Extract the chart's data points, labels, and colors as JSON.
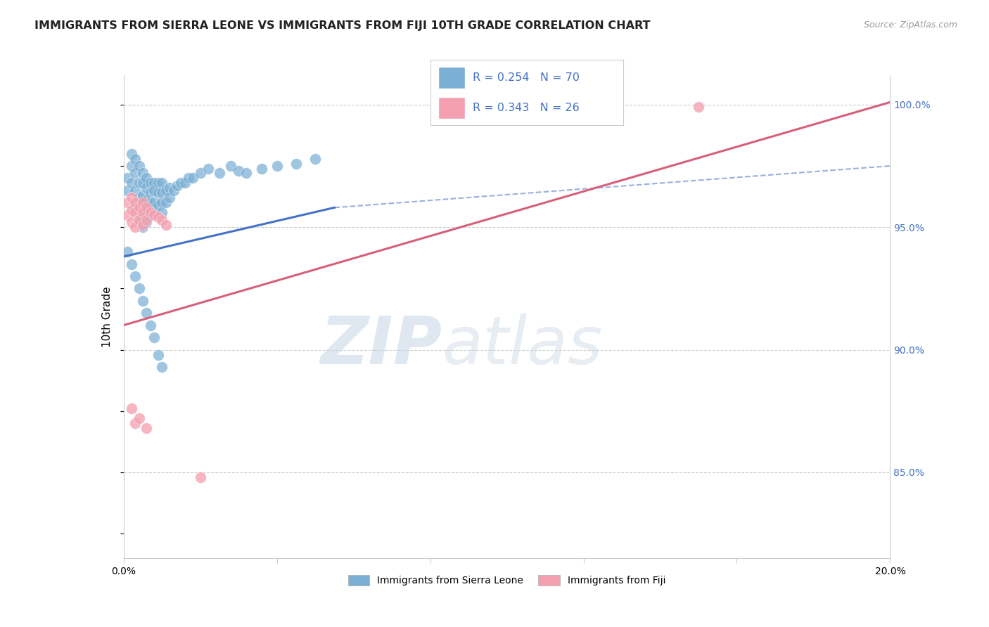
{
  "title": "IMMIGRANTS FROM SIERRA LEONE VS IMMIGRANTS FROM FIJI 10TH GRADE CORRELATION CHART",
  "source": "Source: ZipAtlas.com",
  "ylabel": "10th Grade",
  "legend_label1": "Immigrants from Sierra Leone",
  "legend_label2": "Immigrants from Fiji",
  "R1": 0.254,
  "N1": 70,
  "R2": 0.343,
  "N2": 26,
  "color_blue": "#7bafd4",
  "color_pink": "#f4a0b0",
  "color_blue_line": "#4472c4",
  "color_pink_line": "#d75f7a",
  "xmin": 0.0,
  "xmax": 0.2,
  "ymin": 0.815,
  "ymax": 1.012,
  "right_yticks": [
    0.85,
    0.9,
    0.95,
    1.0
  ],
  "right_ytick_labels": [
    "85.0%",
    "90.0%",
    "95.0%",
    "100.0%"
  ],
  "blue_line_x": [
    0.0,
    0.055,
    0.2
  ],
  "blue_line_y": [
    0.938,
    0.958,
    0.975
  ],
  "blue_line_solid_end": 0.055,
  "pink_line_x": [
    0.0,
    0.2
  ],
  "pink_line_y": [
    0.91,
    1.001
  ],
  "scatter_blue_x": [
    0.001,
    0.001,
    0.002,
    0.002,
    0.002,
    0.003,
    0.003,
    0.003,
    0.003,
    0.004,
    0.004,
    0.004,
    0.004,
    0.004,
    0.005,
    0.005,
    0.005,
    0.005,
    0.005,
    0.005,
    0.006,
    0.006,
    0.006,
    0.006,
    0.006,
    0.007,
    0.007,
    0.007,
    0.007,
    0.008,
    0.008,
    0.008,
    0.008,
    0.009,
    0.009,
    0.009,
    0.01,
    0.01,
    0.01,
    0.01,
    0.011,
    0.011,
    0.012,
    0.012,
    0.013,
    0.014,
    0.015,
    0.016,
    0.017,
    0.018,
    0.02,
    0.022,
    0.025,
    0.028,
    0.03,
    0.032,
    0.036,
    0.04,
    0.045,
    0.05,
    0.001,
    0.002,
    0.003,
    0.004,
    0.005,
    0.006,
    0.007,
    0.008,
    0.009,
    0.01
  ],
  "scatter_blue_y": [
    0.97,
    0.965,
    0.98,
    0.975,
    0.968,
    0.978,
    0.972,
    0.965,
    0.958,
    0.975,
    0.968,
    0.962,
    0.957,
    0.952,
    0.972,
    0.968,
    0.963,
    0.958,
    0.954,
    0.95,
    0.97,
    0.966,
    0.961,
    0.957,
    0.952,
    0.968,
    0.964,
    0.96,
    0.955,
    0.968,
    0.965,
    0.96,
    0.956,
    0.968,
    0.964,
    0.959,
    0.968,
    0.964,
    0.96,
    0.956,
    0.965,
    0.96,
    0.966,
    0.962,
    0.965,
    0.967,
    0.968,
    0.968,
    0.97,
    0.97,
    0.972,
    0.974,
    0.972,
    0.975,
    0.973,
    0.972,
    0.974,
    0.975,
    0.976,
    0.978,
    0.94,
    0.935,
    0.93,
    0.925,
    0.92,
    0.915,
    0.91,
    0.905,
    0.898,
    0.893
  ],
  "scatter_pink_x": [
    0.001,
    0.001,
    0.002,
    0.002,
    0.002,
    0.003,
    0.003,
    0.003,
    0.004,
    0.004,
    0.005,
    0.005,
    0.005,
    0.006,
    0.006,
    0.007,
    0.008,
    0.009,
    0.01,
    0.011,
    0.15,
    0.002,
    0.003,
    0.004,
    0.006,
    0.02
  ],
  "scatter_pink_y": [
    0.96,
    0.955,
    0.962,
    0.957,
    0.952,
    0.96,
    0.956,
    0.95,
    0.958,
    0.953,
    0.96,
    0.956,
    0.951,
    0.958,
    0.953,
    0.956,
    0.955,
    0.954,
    0.953,
    0.951,
    0.999,
    0.876,
    0.87,
    0.872,
    0.868,
    0.848
  ],
  "watermark_zip": "ZIP",
  "watermark_atlas": "atlas",
  "background_color": "#ffffff",
  "grid_color": "#cccccc"
}
